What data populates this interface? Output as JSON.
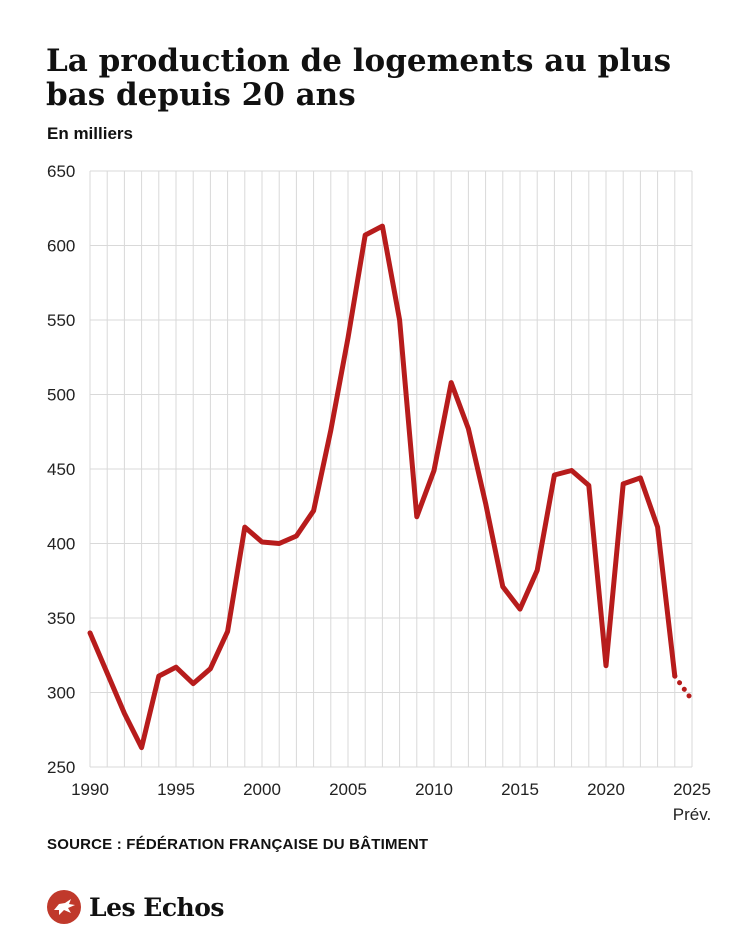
{
  "header": {
    "title": "La production de logements au plus bas depuis 20 ans",
    "subtitle": "En milliers"
  },
  "footer": {
    "source": "SOURCE : FÉDÉRATION FRANÇAISE DU BÂTIMENT",
    "brand": "Les Echos"
  },
  "colors": {
    "line": "#b71c1c",
    "grid": "#d9d9d9",
    "brand": "#c0392b"
  },
  "chart_data": {
    "type": "line",
    "title": "La production de logements au plus bas depuis 20 ans",
    "ylabel": "En milliers",
    "xlim": [
      1990,
      2025
    ],
    "ylim": [
      250,
      650
    ],
    "yticks": [
      250,
      300,
      350,
      400,
      450,
      500,
      550,
      600,
      650
    ],
    "xticks": [
      1990,
      1995,
      2000,
      2005,
      2010,
      2015,
      2020,
      2025
    ],
    "forecast_label": "Prév.",
    "grid": "vertical lines every year, horizontal lines every 50",
    "series": [
      {
        "style": "solid",
        "x": [
          1990,
          1991,
          1992,
          1993,
          1994,
          1995,
          1996,
          1997,
          1998,
          1999,
          2000,
          2001,
          2002,
          2003,
          2004,
          2005,
          2006,
          2007,
          2008,
          2009,
          2010,
          2011,
          2012,
          2013,
          2014,
          2015,
          2016,
          2017,
          2018,
          2019,
          2020,
          2021,
          2022,
          2023,
          2024
        ],
        "y": [
          340,
          313,
          286,
          263,
          311,
          317,
          306,
          316,
          341,
          411,
          401,
          400,
          405,
          422,
          476,
          538,
          607,
          613,
          550,
          418,
          449,
          508,
          477,
          427,
          371,
          356,
          382,
          446,
          449,
          439,
          318,
          440,
          444,
          411,
          311
        ]
      },
      {
        "style": "dotted",
        "x": [
          2024,
          2025
        ],
        "y": [
          311,
          295
        ]
      }
    ]
  }
}
